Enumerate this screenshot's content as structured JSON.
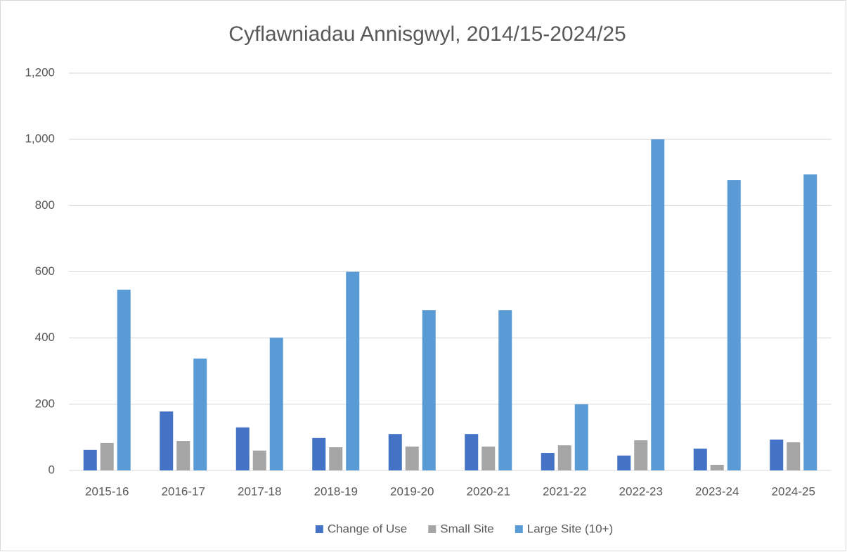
{
  "chart_data": {
    "type": "bar",
    "title": "Cyflawniadau Annisgwyl, 2014/15-2024/25",
    "categories": [
      "2015-16",
      "2016-17",
      "2017-18",
      "2018-19",
      "2019-20",
      "2020-21",
      "2021-22",
      "2022-23",
      "2023-24",
      "2024-25"
    ],
    "series": [
      {
        "name": "Change of Use",
        "color": "#4472c4",
        "values": [
          62,
          178,
          130,
          98,
          110,
          110,
          53,
          45,
          66,
          93
        ]
      },
      {
        "name": "Small Site",
        "color": "#a5a5a5",
        "values": [
          83,
          89,
          60,
          70,
          72,
          72,
          76,
          91,
          17,
          85
        ]
      },
      {
        "name": "Large Site (10+)",
        "color": "#5b9bd5",
        "values": [
          546,
          338,
          401,
          600,
          484,
          484,
          200,
          1000,
          877,
          894
        ]
      }
    ],
    "ylim": [
      0,
      1200
    ],
    "yticks": [
      0,
      200,
      400,
      600,
      800,
      {
        "value": 1000,
        "label": "1,000"
      },
      {
        "value": 1200,
        "label": "1,200"
      }
    ],
    "grid": true,
    "legend": "bottom"
  }
}
